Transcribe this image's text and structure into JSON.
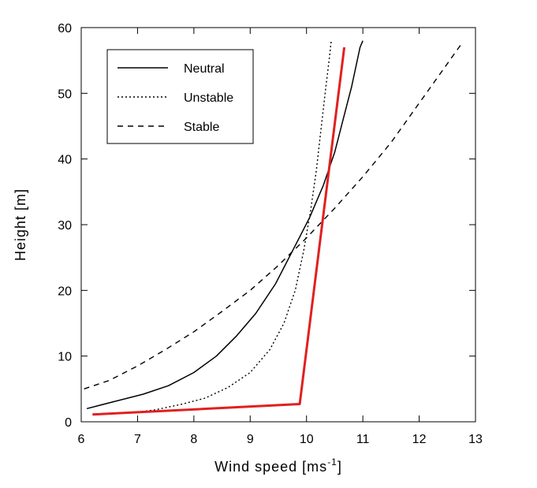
{
  "chart_data": {
    "type": "line",
    "title": "",
    "xlabel": "Wind speed [ms",
    "xlabel_sup": "-1",
    "xlabel_end": "]",
    "ylabel": "Height [m]",
    "xlim": [
      6,
      13
    ],
    "ylim": [
      0,
      60
    ],
    "xticks": [
      6,
      7,
      8,
      9,
      10,
      11,
      12,
      13
    ],
    "yticks": [
      0,
      10,
      20,
      30,
      40,
      50,
      60
    ],
    "grid": false,
    "legend_position": "top-left",
    "series": [
      {
        "name": "Neutral",
        "style": "solid",
        "color": "#000000",
        "points": [
          [
            6.1,
            2
          ],
          [
            6.55,
            3
          ],
          [
            7.1,
            4.2
          ],
          [
            7.55,
            5.5
          ],
          [
            8.0,
            7.5
          ],
          [
            8.4,
            10
          ],
          [
            8.75,
            13
          ],
          [
            9.1,
            16.5
          ],
          [
            9.45,
            21
          ],
          [
            9.75,
            26
          ],
          [
            10.05,
            31
          ],
          [
            10.3,
            36
          ],
          [
            10.5,
            41
          ],
          [
            10.65,
            46
          ],
          [
            10.8,
            51
          ],
          [
            10.95,
            57
          ],
          [
            11.0,
            58
          ]
        ]
      },
      {
        "name": "Unstable",
        "style": "dotted",
        "color": "#000000",
        "points": [
          [
            6.8,
            1.3
          ],
          [
            7.3,
            1.8
          ],
          [
            7.8,
            2.7
          ],
          [
            8.2,
            3.6
          ],
          [
            8.6,
            5.2
          ],
          [
            9.0,
            7.5
          ],
          [
            9.35,
            11
          ],
          [
            9.6,
            15
          ],
          [
            9.8,
            20
          ],
          [
            9.95,
            26
          ],
          [
            10.07,
            32
          ],
          [
            10.17,
            38
          ],
          [
            10.25,
            44
          ],
          [
            10.33,
            50
          ],
          [
            10.4,
            55
          ],
          [
            10.44,
            58
          ]
        ]
      },
      {
        "name": "Stable",
        "style": "dashed",
        "color": "#000000",
        "points": [
          [
            6.05,
            5
          ],
          [
            6.5,
            6.3
          ],
          [
            7.0,
            8.5
          ],
          [
            7.5,
            11
          ],
          [
            8.0,
            13.7
          ],
          [
            8.5,
            16.8
          ],
          [
            9.0,
            20
          ],
          [
            9.5,
            23.8
          ],
          [
            10.0,
            28
          ],
          [
            10.5,
            32.5
          ],
          [
            11.0,
            37.3
          ],
          [
            11.5,
            42.5
          ],
          [
            12.0,
            48.5
          ],
          [
            12.5,
            54.5
          ],
          [
            12.75,
            57.5
          ]
        ]
      },
      {
        "name": "",
        "style": "solid-thick",
        "color": "#e02020",
        "points": [
          [
            6.2,
            1.1
          ],
          [
            9.88,
            2.7
          ],
          [
            10.67,
            57
          ]
        ]
      }
    ]
  }
}
